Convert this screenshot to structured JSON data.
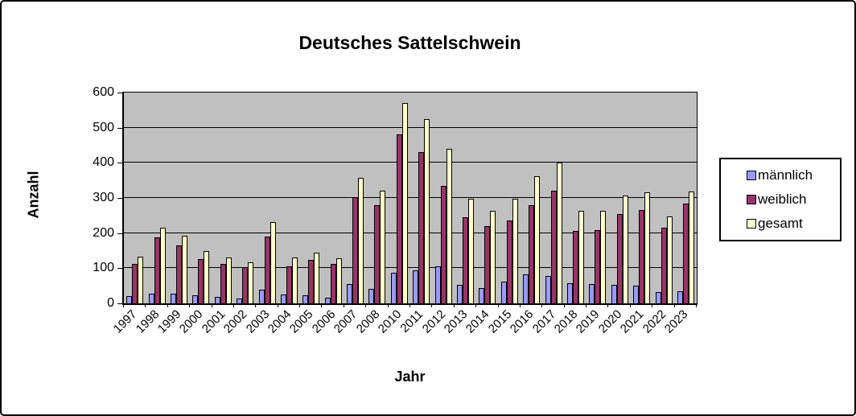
{
  "title": "Deutsches Sattelschwein",
  "y_axis_title": "Anzahl",
  "x_axis_title": "Jahr",
  "colors": {
    "maennlich": "#9999FF",
    "weiblich": "#993366",
    "gesamt": "#FFFFCC",
    "plot_background": "#C0C0C0",
    "frame_border": "#000000",
    "page_background": "#FFFFFF"
  },
  "chart_data": {
    "type": "bar",
    "title": "Deutsches Sattelschwein",
    "xlabel": "Jahr",
    "ylabel": "Anzahl",
    "ylim": [
      0,
      600
    ],
    "yticks": [
      0,
      100,
      200,
      300,
      400,
      500,
      600
    ],
    "grid": true,
    "legend_position": "right",
    "plot_bg": "#C0C0C0",
    "categories": [
      "1997",
      "1998",
      "1999",
      "2000",
      "2001",
      "2002",
      "2003",
      "2004",
      "2005",
      "2006",
      "2007",
      "2008",
      "2010",
      "2011",
      "2012",
      "2013",
      "2014",
      "2015",
      "2016",
      "2017",
      "2018",
      "2019",
      "2020",
      "2021",
      "2022",
      "2023"
    ],
    "series": [
      {
        "name": "männlich",
        "color": "#9999FF",
        "values": [
          20,
          28,
          28,
          22,
          18,
          14,
          40,
          25,
          22,
          15,
          55,
          41,
          88,
          95,
          105,
          53,
          44,
          62,
          82,
          79,
          57,
          55,
          53,
          50,
          32,
          34
        ]
      },
      {
        "name": "weiblich",
        "color": "#993366",
        "values": [
          113,
          188,
          165,
          126,
          112,
          103,
          191,
          106,
          123,
          113,
          303,
          279,
          482,
          430,
          334,
          244,
          219,
          236,
          280,
          321,
          206,
          208,
          254,
          265,
          215,
          284
        ]
      },
      {
        "name": "gesamt",
        "color": "#FFFFCC",
        "values": [
          133,
          216,
          193,
          148,
          130,
          117,
          231,
          131,
          145,
          128,
          358,
          320,
          570,
          525,
          439,
          297,
          263,
          298,
          362,
          400,
          263,
          263,
          307,
          315,
          247,
          318
        ]
      }
    ]
  }
}
